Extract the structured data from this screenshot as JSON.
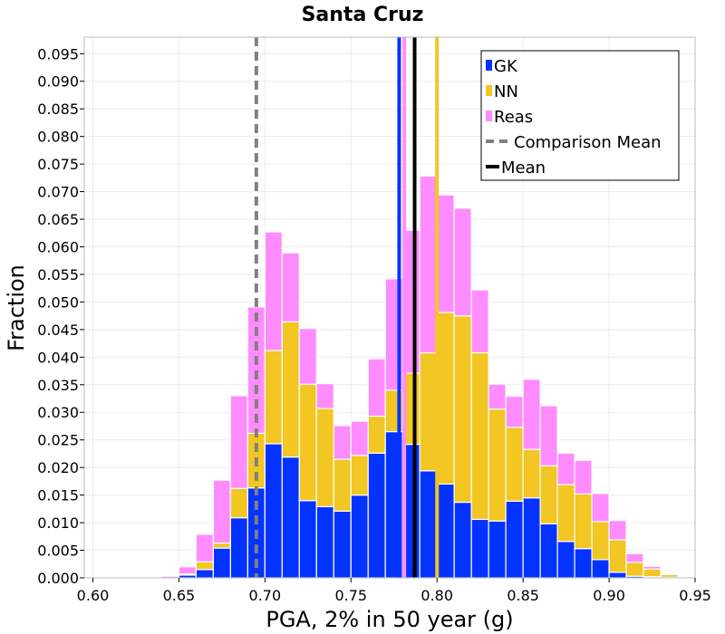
{
  "chart_data": {
    "type": "bar",
    "stacked": true,
    "title": "Santa Cruz",
    "xlabel": "PGA, 2% in 50 year (g)",
    "ylabel": "Fraction",
    "xlim": [
      0.595,
      0.95
    ],
    "ylim": [
      0,
      0.098
    ],
    "grid": true,
    "legend_position": "top-right",
    "x_ticks": [
      0.6,
      0.65,
      0.7,
      0.75,
      0.8,
      0.85,
      0.9,
      0.95
    ],
    "x_tick_labels": [
      "0.60",
      "0.65",
      "0.70",
      "0.75",
      "0.80",
      "0.85",
      "0.90",
      "0.95"
    ],
    "y_ticks": [
      0,
      0.005,
      0.01,
      0.015,
      0.02,
      0.025,
      0.03,
      0.035,
      0.04,
      0.045,
      0.05,
      0.055,
      0.06,
      0.065,
      0.07,
      0.075,
      0.08,
      0.085,
      0.09,
      0.095
    ],
    "y_tick_labels": [
      "0.000",
      "0.005",
      "0.010",
      "0.015",
      "0.020",
      "0.025",
      "0.030",
      "0.035",
      "0.040",
      "0.045",
      "0.050",
      "0.055",
      "0.060",
      "0.065",
      "0.070",
      "0.075",
      "0.080",
      "0.085",
      "0.090",
      "0.095"
    ],
    "bin_width": 0.01,
    "bin_starts": [
      0.6,
      0.61,
      0.62,
      0.63,
      0.64,
      0.65,
      0.66,
      0.67,
      0.68,
      0.69,
      0.7,
      0.71,
      0.72,
      0.73,
      0.74,
      0.75,
      0.76,
      0.77,
      0.78,
      0.79,
      0.8,
      0.81,
      0.82,
      0.83,
      0.84,
      0.85,
      0.86,
      0.87,
      0.88,
      0.89,
      0.9,
      0.91,
      0.92,
      0.93,
      0.94
    ],
    "series": [
      {
        "name": "GK",
        "color": "#0433ff",
        "values": [
          0,
          0,
          0,
          0,
          0,
          0.0005,
          0.0015,
          0.0054,
          0.0109,
          0.0163,
          0.0243,
          0.0219,
          0.014,
          0.0129,
          0.0121,
          0.015,
          0.0226,
          0.0265,
          0.0242,
          0.0194,
          0.017,
          0.0137,
          0.0106,
          0.0103,
          0.0139,
          0.0145,
          0.0098,
          0.0066,
          0.0053,
          0.0033,
          0.001,
          0.0003,
          0.0002,
          0.0001,
          0
        ]
      },
      {
        "name": "NN",
        "color": "#f2c623",
        "values": [
          0,
          0,
          0,
          0,
          0,
          0.0002,
          0.0014,
          0.0009,
          0.0053,
          0.0099,
          0.0169,
          0.0245,
          0.0211,
          0.0178,
          0.0094,
          0.0072,
          0.0067,
          0.0075,
          0.0129,
          0.0214,
          0.0311,
          0.0338,
          0.0302,
          0.0203,
          0.0134,
          0.0088,
          0.0105,
          0.0103,
          0.0099,
          0.0069,
          0.0059,
          0.0025,
          0.0014,
          0.0005,
          0.0001
        ]
      },
      {
        "name": "Reas",
        "color": "#ff8cff",
        "values": [
          0,
          0,
          0,
          0.0001,
          0.0003,
          0.0013,
          0.005,
          0.0114,
          0.0168,
          0.0229,
          0.0215,
          0.0125,
          0.0101,
          0.0045,
          0.0061,
          0.0062,
          0.0104,
          0.0202,
          0.0259,
          0.032,
          0.0213,
          0.0195,
          0.0114,
          0.0045,
          0.0056,
          0.0127,
          0.0109,
          0.0057,
          0.0061,
          0.0051,
          0.0035,
          0.0016,
          0.0005,
          0,
          0
        ]
      }
    ],
    "vertical_lines": [
      {
        "legend": "Comparison Mean",
        "x": 0.695,
        "color": "#808080",
        "style": "dashed"
      },
      {
        "legend": "Mean",
        "x": 0.787,
        "color": "#000000",
        "style": "solid"
      },
      {
        "x": 0.778,
        "color": "#0433ff",
        "style": "solid"
      },
      {
        "x": 0.781,
        "color": "#ff8cff",
        "style": "solid"
      },
      {
        "x": 0.8,
        "color": "#f2c623",
        "style": "solid"
      }
    ],
    "legend": [
      {
        "label": "GK",
        "color": "#0433ff",
        "kind": "bar"
      },
      {
        "label": "NN",
        "color": "#f2c623",
        "kind": "bar"
      },
      {
        "label": "Reas",
        "color": "#ff8cff",
        "kind": "bar"
      },
      {
        "label": "Comparison Mean",
        "color": "#808080",
        "kind": "dashed-line"
      },
      {
        "label": "Mean",
        "color": "#000000",
        "kind": "line"
      }
    ]
  }
}
